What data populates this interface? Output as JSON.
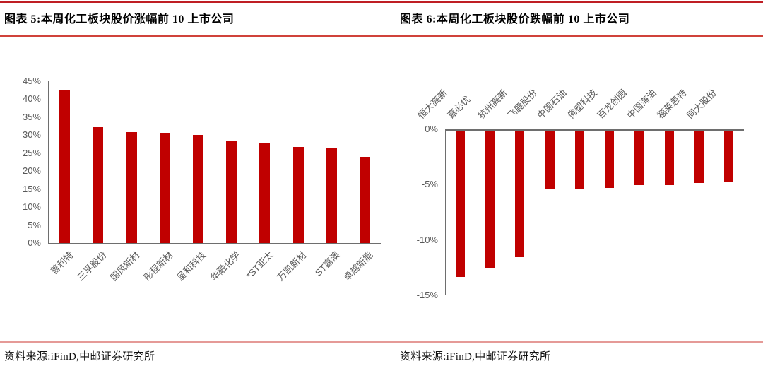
{
  "style": {
    "top_rule_color": "#bf1e24",
    "title_rule_color": "#d0423a",
    "footer_rule_color": "#e59a97",
    "bar_color": "#c00000",
    "axis_color": "#6e6e6e",
    "tick_text_color": "#595959"
  },
  "figures": [
    {
      "label": "图表 5",
      "title": "图表 5:本周化工板块股价涨幅前 10 上市公司",
      "source": "资料来源:iFinD,中邮证券研究所"
    },
    {
      "label": "图表 6",
      "title": "图表 6:本周化工板块股价跌幅前 10 上市公司",
      "source": "资料来源:iFinD,中邮证券研究所"
    }
  ],
  "chart_data": [
    {
      "type": "bar",
      "title": "本周化工板块股价涨幅前 10 上市公司",
      "unit": "%",
      "categories": [
        "普利特",
        "三孚股份",
        "国风新材",
        "彤程新材",
        "呈和科技",
        "华融化学",
        "*ST亚太",
        "万凯新材",
        "ST嘉澳",
        "卓越新能"
      ],
      "values": [
        42.7,
        32.2,
        30.8,
        30.6,
        30.1,
        28.2,
        27.8,
        26.7,
        26.3,
        23.9
      ],
      "ylim": [
        0,
        45
      ],
      "yticks": [
        "0%",
        "5%",
        "10%",
        "15%",
        "20%",
        "25%",
        "30%",
        "35%",
        "40%",
        "45%"
      ],
      "xlabel": "",
      "ylabel": "",
      "grid": false,
      "legend": "none",
      "category_label_rotation": 45
    },
    {
      "type": "bar",
      "title": "本周化工板块股价跌幅前 10 上市公司",
      "unit": "%",
      "categories": [
        "恒大高新",
        "嘉必优",
        "杭州高新",
        "飞鹿股份",
        "中国石油",
        "佛塑科技",
        "百龙创园",
        "中国海油",
        "福莱蒽特",
        "同大股份"
      ],
      "values": [
        -13.2,
        -12.4,
        -11.4,
        -5.3,
        -5.3,
        -5.2,
        -4.9,
        -4.9,
        -4.7,
        -4.6
      ],
      "ylim": [
        -15,
        0
      ],
      "yticks": [
        "0%",
        "-5%",
        "-10%",
        "-15%"
      ],
      "xlabel": "",
      "ylabel": "",
      "grid": false,
      "legend": "none",
      "category_label_rotation": 45
    }
  ]
}
